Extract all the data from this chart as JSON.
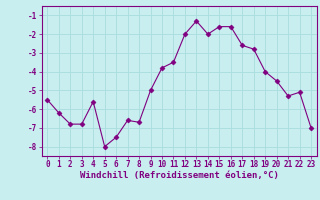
{
  "xlabel": "Windchill (Refroidissement éolien,°C)",
  "x": [
    0,
    1,
    2,
    3,
    4,
    5,
    6,
    7,
    8,
    9,
    10,
    11,
    12,
    13,
    14,
    15,
    16,
    17,
    18,
    19,
    20,
    21,
    22,
    23
  ],
  "y": [
    -5.5,
    -6.2,
    -6.8,
    -6.8,
    -5.6,
    -8.0,
    -7.5,
    -6.6,
    -6.7,
    -5.0,
    -3.8,
    -3.5,
    -2.0,
    -1.3,
    -2.0,
    -1.6,
    -1.6,
    -2.6,
    -2.8,
    -4.0,
    -4.5,
    -5.3,
    -5.1,
    -7.0
  ],
  "line_color": "#800080",
  "marker": "D",
  "marker_size": 2.5,
  "bg_color": "#c8eef0",
  "grid_color": "#aadddd",
  "ylim": [
    -8.5,
    -0.5
  ],
  "xlim": [
    -0.5,
    23.5
  ],
  "yticks": [
    -8,
    -7,
    -6,
    -5,
    -4,
    -3,
    -2,
    -1
  ],
  "xticks": [
    0,
    1,
    2,
    3,
    4,
    5,
    6,
    7,
    8,
    9,
    10,
    11,
    12,
    13,
    14,
    15,
    16,
    17,
    18,
    19,
    20,
    21,
    22,
    23
  ],
  "tick_fontsize": 5.5,
  "xlabel_fontsize": 6.5,
  "spine_color": "#800080",
  "tick_color": "#800080"
}
